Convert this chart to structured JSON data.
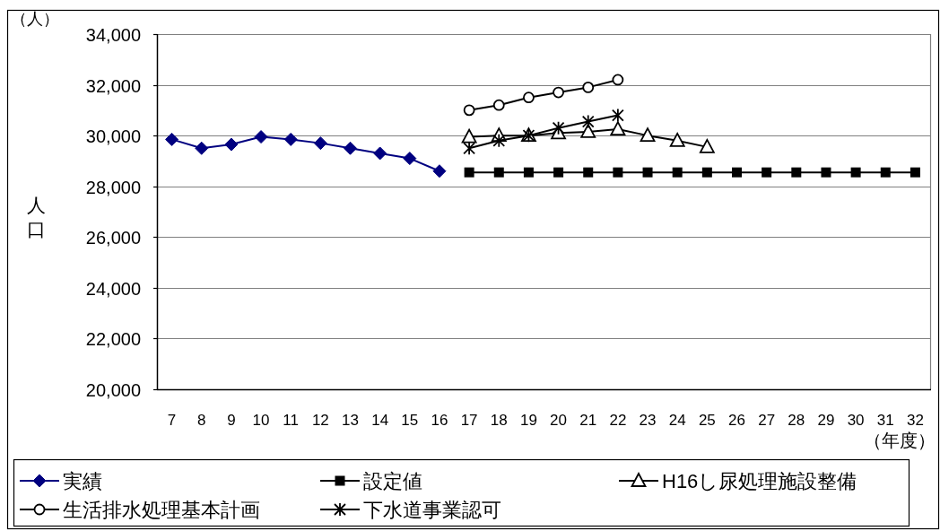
{
  "chart_data": {
    "type": "line",
    "categories": [
      "7",
      "8",
      "9",
      "10",
      "11",
      "12",
      "13",
      "14",
      "15",
      "16",
      "17",
      "18",
      "19",
      "20",
      "21",
      "22",
      "23",
      "24",
      "25",
      "26",
      "27",
      "28",
      "29",
      "30",
      "31",
      "32"
    ],
    "series": [
      {
        "name": "実績",
        "color": "#000080",
        "marker": "diamond",
        "values": [
          29850,
          29500,
          29650,
          29950,
          29850,
          29700,
          29500,
          29300,
          29100,
          28600,
          null,
          null,
          null,
          null,
          null,
          null,
          null,
          null,
          null,
          null,
          null,
          null,
          null,
          null,
          null,
          null
        ]
      },
      {
        "name": "設定値",
        "color": "#000000",
        "marker": "square",
        "values": [
          null,
          null,
          null,
          null,
          null,
          null,
          null,
          null,
          null,
          null,
          28550,
          28550,
          28550,
          28550,
          28550,
          28550,
          28550,
          28550,
          28550,
          28550,
          28550,
          28550,
          28550,
          28550,
          28550,
          28550
        ]
      },
      {
        "name": "H16し尿処理施設整備",
        "color": "#000000",
        "marker": "triangle",
        "values": [
          null,
          null,
          null,
          null,
          null,
          null,
          null,
          null,
          null,
          null,
          29950,
          30000,
          30000,
          30100,
          30150,
          30250,
          30000,
          29800,
          29550,
          null,
          null,
          null,
          null,
          null,
          null,
          null
        ]
      },
      {
        "name": "生活排水処理基本計画",
        "color": "#000000",
        "marker": "circle",
        "values": [
          null,
          null,
          null,
          null,
          null,
          null,
          null,
          null,
          null,
          null,
          31000,
          31200,
          31500,
          31700,
          31900,
          32200,
          null,
          null,
          null,
          null,
          null,
          null,
          null,
          null,
          null,
          null
        ]
      },
      {
        "name": "下水道事業認可",
        "color": "#000000",
        "marker": "cross",
        "values": [
          null,
          null,
          null,
          null,
          null,
          null,
          null,
          null,
          null,
          null,
          29500,
          29800,
          30000,
          30300,
          30550,
          30800,
          null,
          null,
          null,
          null,
          null,
          null,
          null,
          null,
          null,
          null
        ]
      }
    ],
    "ylim": [
      20000,
      34000
    ],
    "yticks": [
      {
        "value": 20000,
        "label": "20,000"
      },
      {
        "value": 22000,
        "label": "22,000"
      },
      {
        "value": 24000,
        "label": "24,000"
      },
      {
        "value": 26000,
        "label": "26,000"
      },
      {
        "value": 28000,
        "label": "28,000"
      },
      {
        "value": 30000,
        "label": "30,000"
      },
      {
        "value": 32000,
        "label": "32,000"
      },
      {
        "value": 34000,
        "label": "34,000"
      }
    ],
    "ylabel": "人口",
    "xlabel": "（年度）",
    "annotations": [
      "（人）"
    ],
    "grid": "y",
    "legend": "bottom"
  }
}
